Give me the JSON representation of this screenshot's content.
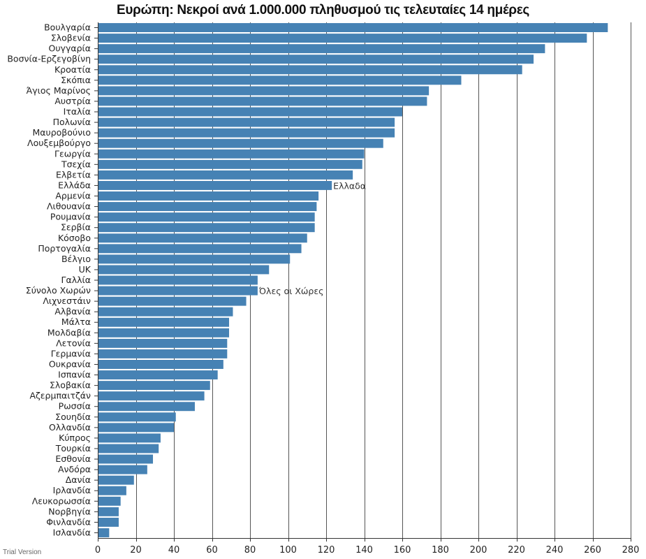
{
  "chart_data": {
    "type": "bar",
    "orientation": "horizontal",
    "title": "Ευρώπη: Νεκροί ανά 1.000.000 πληθυσμού τις τελευταίες 14 ημέρες",
    "categories": [
      "Βουλγαρία",
      "Σλοβενία",
      "Ουγγαρία",
      "Βοσνία-Ερζεγοβίνη",
      "Κροατία",
      "Σκόπια",
      "Άγιος Μαρίνος",
      "Αυστρία",
      "Ιταλία",
      "Πολωνία",
      "Μαυροβούνιο",
      "Λουξεμβούργο",
      "Γεωργία",
      "Τσεχία",
      "Ελβετία",
      "Ελλάδα",
      "Αρμενία",
      "Λιθουανία",
      "Ρουμανία",
      "Σερβία",
      "Κόσοβο",
      "Πορτογαλία",
      "Βέλγιο",
      "UK",
      "Γαλλία",
      "Σύνολο Χωρών",
      "Λιχνεστάιν",
      "Αλβανία",
      "Μάλτα",
      "Μολδαβία",
      "Λετονία",
      "Γερμανία",
      "Ουκρανία",
      "Ισπανία",
      "Σλοβακία",
      "Αζερμπαιτζάν",
      "Ρωσσία",
      "Σουηδία",
      "Ολλανδία",
      "Κύπρος",
      "Τουρκία",
      "Εσθονία",
      "Ανδόρα",
      "Δανία",
      "Ιρλανδία",
      "Λευκορωσσία",
      "Νορβηγία",
      "Φινλανδία",
      "Ισλανδία"
    ],
    "values": [
      268,
      257,
      235,
      229,
      223,
      191,
      174,
      173,
      160,
      156,
      156,
      150,
      140,
      139,
      134,
      123,
      116,
      115,
      114,
      114,
      110,
      107,
      101,
      90,
      84,
      84,
      78,
      71,
      69,
      69,
      68,
      68,
      66,
      63,
      59,
      56,
      51,
      41,
      40,
      33,
      32,
      29,
      26,
      19,
      15,
      12,
      11,
      11,
      6
    ],
    "annotations": [
      {
        "category": "Ελλάδα",
        "text": "Ελλαδα"
      },
      {
        "category": "Σύνολο Χωρών",
        "text": "Όλες οι Χώρες"
      }
    ],
    "xlim": [
      0,
      280
    ],
    "xticks": [
      0,
      20,
      40,
      60,
      80,
      100,
      120,
      140,
      160,
      180,
      200,
      220,
      240,
      260,
      280
    ],
    "grid": true,
    "bar_color": "#4682b4"
  },
  "watermark": "Trial Version"
}
